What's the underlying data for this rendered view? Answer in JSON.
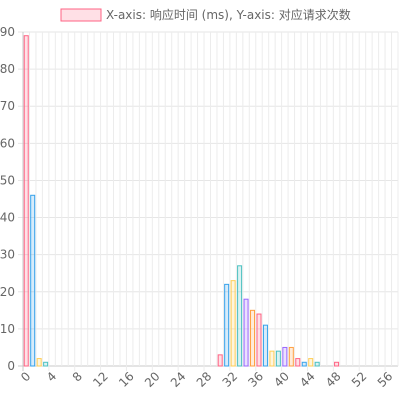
{
  "chart_data": {
    "type": "bar",
    "legend": {
      "label": "X-axis: 响应时间 (ms), Y-axis: 对应请求次数",
      "position": "top",
      "background_color": "#ffe0e6",
      "border_color": "#ff6384"
    },
    "x": {
      "min": 0,
      "max": 58,
      "tick_labels": [
        "0",
        "4",
        "8",
        "12",
        "16",
        "20",
        "24",
        "28",
        "32",
        "36",
        "40",
        "44",
        "48",
        "52",
        "56"
      ]
    },
    "y": {
      "min": 0,
      "max": 90,
      "tick_labels": [
        "0",
        "10",
        "20",
        "30",
        "40",
        "50",
        "60",
        "70",
        "80",
        "90"
      ]
    },
    "grid": true,
    "palette": [
      "#ff6384",
      "#36a2eb",
      "#ffce56",
      "#4bc0c0",
      "#9966ff",
      "#ff9f40"
    ],
    "bars": [
      {
        "x": 0,
        "value": 89
      },
      {
        "x": 1,
        "value": 46
      },
      {
        "x": 2,
        "value": 2
      },
      {
        "x": 3,
        "value": 1
      },
      {
        "x": 30,
        "value": 3
      },
      {
        "x": 31,
        "value": 22
      },
      {
        "x": 32,
        "value": 23
      },
      {
        "x": 33,
        "value": 27
      },
      {
        "x": 34,
        "value": 18
      },
      {
        "x": 35,
        "value": 15
      },
      {
        "x": 36,
        "value": 14
      },
      {
        "x": 37,
        "value": 11
      },
      {
        "x": 38,
        "value": 4
      },
      {
        "x": 39,
        "value": 4
      },
      {
        "x": 40,
        "value": 5
      },
      {
        "x": 41,
        "value": 5
      },
      {
        "x": 42,
        "value": 2
      },
      {
        "x": 43,
        "value": 1
      },
      {
        "x": 44,
        "value": 2
      },
      {
        "x": 45,
        "value": 1
      },
      {
        "x": 48,
        "value": 1
      }
    ]
  }
}
